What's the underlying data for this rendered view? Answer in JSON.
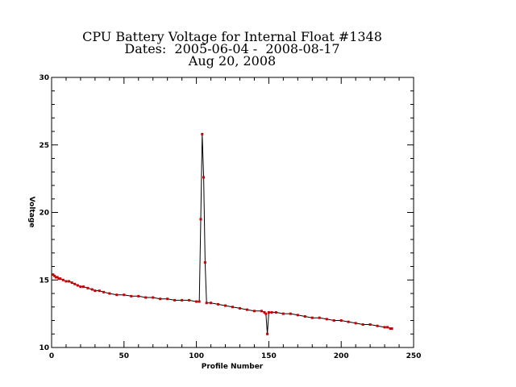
{
  "chart_data": {
    "type": "line",
    "title": [
      "CPU Battery Voltage for Internal Float #1348",
      "Dates:  2005-06-04 -  2008-08-17",
      "Aug 20, 2008"
    ],
    "xlabel": "Profile Number",
    "ylabel": "Voltage",
    "xlim": [
      0,
      250
    ],
    "ylim": [
      10,
      30
    ],
    "x_ticks": [
      0,
      50,
      100,
      150,
      200,
      250
    ],
    "y_ticks": [
      10,
      15,
      20,
      25,
      30
    ],
    "x_tick_labels": [
      "0",
      "50",
      "100",
      "150",
      "200",
      "250"
    ],
    "y_tick_labels": [
      "10",
      "15",
      "20",
      "25",
      "30"
    ],
    "marker_color": "#cc0000",
    "line_color": "#000000",
    "series": [
      {
        "x": [
          1,
          2,
          3,
          4,
          5,
          6,
          8,
          10,
          12,
          14,
          16,
          18,
          20,
          22,
          25,
          28,
          30,
          33,
          36,
          40,
          45,
          50,
          55,
          60,
          65,
          70,
          75,
          80,
          85,
          90,
          95,
          100,
          102,
          103,
          104,
          105,
          106,
          107,
          110,
          115,
          120,
          125,
          130,
          135,
          140,
          145,
          147,
          148,
          149,
          150,
          152,
          155,
          160,
          165,
          170,
          175,
          180,
          185,
          190,
          195,
          200,
          205,
          210,
          215,
          220,
          225,
          230,
          232,
          234,
          235
        ],
        "y": [
          15.4,
          15.3,
          15.2,
          15.2,
          15.1,
          15.1,
          15.0,
          14.9,
          14.9,
          14.8,
          14.7,
          14.6,
          14.5,
          14.5,
          14.4,
          14.3,
          14.2,
          14.2,
          14.1,
          14.0,
          13.9,
          13.9,
          13.8,
          13.8,
          13.7,
          13.7,
          13.6,
          13.6,
          13.5,
          13.5,
          13.5,
          13.4,
          13.4,
          19.5,
          25.8,
          22.6,
          16.3,
          13.3,
          13.3,
          13.2,
          13.1,
          13.0,
          12.9,
          12.8,
          12.7,
          12.7,
          12.6,
          12.5,
          11.0,
          12.6,
          12.6,
          12.6,
          12.5,
          12.5,
          12.4,
          12.3,
          12.2,
          12.2,
          12.1,
          12.0,
          12.0,
          11.9,
          11.8,
          11.7,
          11.7,
          11.6,
          11.5,
          11.5,
          11.4,
          11.4
        ]
      }
    ]
  }
}
